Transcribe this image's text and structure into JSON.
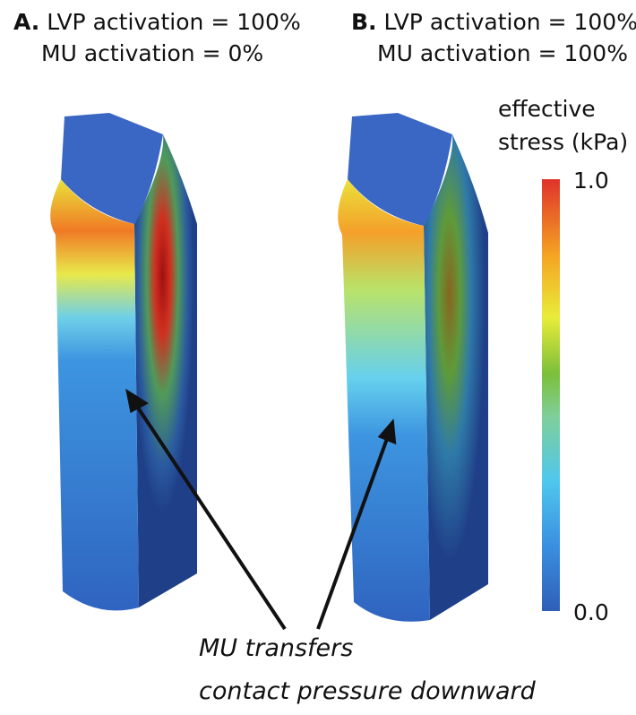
{
  "panels": [
    {
      "label": "A.",
      "line1": "LVP activation = 100%",
      "line2": "MU activation = 0%"
    },
    {
      "label": "B.",
      "line1": "LVP activation = 100%",
      "line2": "MU activation = 100%"
    }
  ],
  "colorbar": {
    "title_line1": "effective",
    "title_line2": "stress (kPa)",
    "max_label": "1.0",
    "min_label": "0.0"
  },
  "annotation": {
    "line1": "MU transfers",
    "line2": "contact pressure downward"
  }
}
